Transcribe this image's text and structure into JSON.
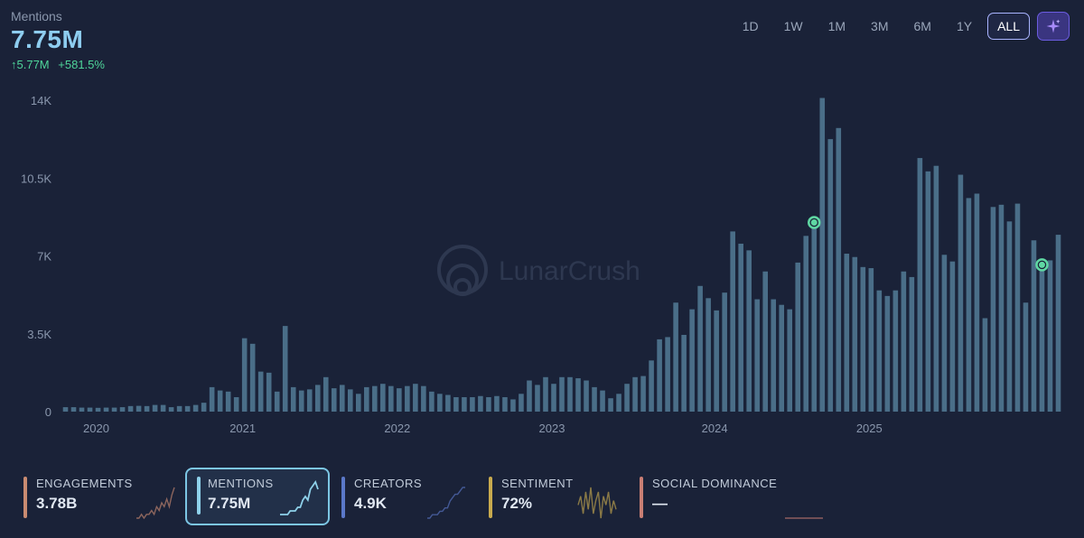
{
  "header": {
    "label": "Mentions",
    "value": "7.75M",
    "change_abs": "↑5.77M",
    "change_pct": "+581.5%"
  },
  "ranges": [
    "1D",
    "1W",
    "1M",
    "3M",
    "6M",
    "1Y",
    "ALL"
  ],
  "active_range": "ALL",
  "ai_icon": "sparkle-icon",
  "watermark": "LunarCrush",
  "chart_data": {
    "type": "bar",
    "ylim": [
      0,
      14000
    ],
    "y_ticks": [
      0,
      3500,
      7000,
      10500,
      14000
    ],
    "y_tick_labels": [
      "0",
      "3.5K",
      "7K",
      "10.5K",
      "14K"
    ],
    "x_tick_labels": [
      "2020",
      "2021",
      "2022",
      "2023",
      "2024",
      "2025"
    ],
    "x_tick_index": [
      2,
      20,
      39,
      58,
      78,
      97
    ],
    "values": [
      200,
      200,
      180,
      180,
      170,
      180,
      180,
      200,
      250,
      260,
      250,
      300,
      300,
      200,
      250,
      250,
      300,
      400,
      1100,
      950,
      900,
      650,
      3300,
      3050,
      1800,
      1750,
      900,
      3850,
      1100,
      950,
      1000,
      1200,
      1550,
      1050,
      1200,
      1000,
      800,
      1100,
      1150,
      1250,
      1150,
      1050,
      1150,
      1250,
      1150,
      900,
      800,
      750,
      650,
      650,
      650,
      700,
      650,
      700,
      650,
      550,
      800,
      1400,
      1200,
      1550,
      1250,
      1550,
      1550,
      1500,
      1400,
      1100,
      950,
      600,
      800,
      1250,
      1550,
      1600,
      2300,
      3250,
      3350,
      4900,
      3450,
      4600,
      5650,
      5100,
      4550,
      5350,
      8100,
      7550,
      7250,
      5050,
      6300,
      5050,
      4800,
      4600,
      6700,
      7900,
      8500,
      14100,
      12250,
      12750,
      7100,
      6950,
      6500,
      6450,
      5450,
      5200,
      5450,
      6300,
      6050,
      11400,
      10800,
      11050,
      7050,
      6750,
      10650,
      9600,
      9800,
      4200,
      9200,
      9300,
      8550,
      9350,
      4900,
      7700,
      6600,
      6800,
      7950
    ],
    "markers": [
      {
        "index": 92,
        "value": 8500
      },
      {
        "index": 120,
        "value": 6600
      }
    ],
    "bar_color": "#4a6e88",
    "marker_color": "#5fd8a3"
  },
  "metrics": [
    {
      "label": "ENGAGEMENTS",
      "value": "3.78B",
      "color": "#c98b71",
      "spark": [
        1,
        1,
        2,
        1,
        2,
        2,
        3,
        2,
        4,
        3,
        5,
        4,
        6,
        4,
        7,
        9
      ]
    },
    {
      "label": "MENTIONS",
      "value": "7.75M",
      "color": "#8ed1ea",
      "spark": [
        1,
        1,
        1,
        1,
        2,
        2,
        2,
        3,
        3,
        5,
        6,
        5,
        8,
        9,
        10,
        8
      ]
    },
    {
      "label": "CREATORS",
      "value": "4.9K",
      "color": "#5b78c9",
      "spark": [
        1,
        1,
        2,
        2,
        2,
        3,
        3,
        4,
        4,
        6,
        7,
        8,
        8,
        9,
        10,
        10
      ]
    },
    {
      "label": "SENTIMENT",
      "value": "72%",
      "color": "#c8aa4e",
      "spark": [
        5,
        7,
        3,
        8,
        4,
        9,
        3,
        6,
        8,
        2,
        7,
        5,
        8,
        3,
        6,
        4
      ]
    },
    {
      "label": "SOCIAL DOMINANCE",
      "value": "—",
      "color": "#c97e74",
      "spark": [
        5,
        5,
        5,
        5,
        5,
        5,
        5,
        5
      ]
    }
  ]
}
